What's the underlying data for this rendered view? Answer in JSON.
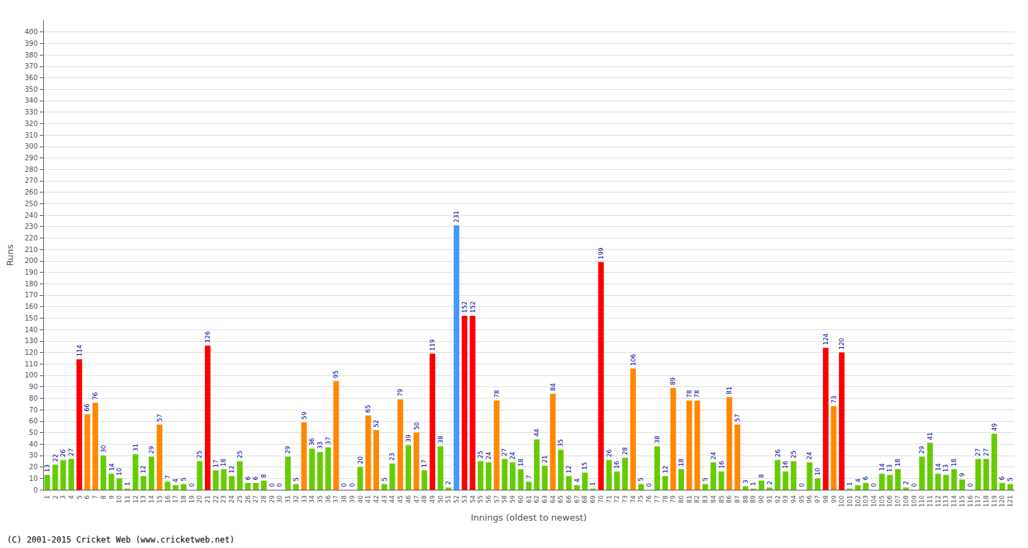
{
  "chart_data": {
    "type": "bar",
    "xlabel": "Innings (oldest to newest)",
    "ylabel": "Runs",
    "annotations": [
      "(C) 2001-2015 Cricket Web (www.cricketweb.net)"
    ],
    "categories": [
      "1",
      "2",
      "3",
      "4",
      "5",
      "6",
      "7",
      "8",
      "9",
      "10",
      "11",
      "12",
      "13",
      "14",
      "15",
      "16",
      "17",
      "18",
      "19",
      "20",
      "21",
      "22",
      "23",
      "24",
      "25",
      "26",
      "27",
      "28",
      "29",
      "30",
      "31",
      "32",
      "33",
      "34",
      "35",
      "36",
      "37",
      "38",
      "39",
      "40",
      "41",
      "42",
      "43",
      "44",
      "45",
      "46",
      "47",
      "48",
      "49",
      "50",
      "51",
      "52",
      "53",
      "54",
      "55",
      "56",
      "57",
      "58",
      "59",
      "60",
      "61",
      "62",
      "63",
      "64",
      "65",
      "66",
      "67",
      "68",
      "69",
      "70",
      "71",
      "72",
      "73",
      "74",
      "75",
      "76",
      "77",
      "78",
      "79",
      "80",
      "81",
      "82",
      "83",
      "84",
      "85",
      "86",
      "87",
      "88",
      "89",
      "90",
      "91",
      "92",
      "93",
      "94",
      "95",
      "96",
      "97",
      "98",
      "99",
      "100",
      "101",
      "102",
      "103",
      "104",
      "105",
      "106",
      "107",
      "108",
      "109",
      "110",
      "111",
      "112",
      "113",
      "114",
      "115",
      "116",
      "117",
      "118",
      "119",
      "120",
      "121"
    ],
    "values": [
      13,
      22,
      26,
      27,
      114,
      66,
      76,
      30,
      14,
      10,
      1,
      31,
      12,
      29,
      57,
      7,
      4,
      5,
      0,
      25,
      126,
      17,
      18,
      12,
      25,
      6,
      6,
      8,
      0,
      0,
      29,
      5,
      59,
      36,
      33,
      37,
      95,
      0,
      0,
      20,
      65,
      52,
      5,
      23,
      79,
      39,
      50,
      17,
      119,
      38,
      2,
      231,
      152,
      152,
      25,
      24,
      78,
      27,
      24,
      18,
      7,
      44,
      21,
      84,
      35,
      12,
      4,
      15,
      1,
      199,
      26,
      16,
      28,
      106,
      5,
      0,
      38,
      12,
      89,
      18,
      78,
      78,
      5,
      24,
      16,
      81,
      57,
      3,
      1,
      8,
      2,
      26,
      16,
      25,
      0,
      24,
      10,
      124,
      73,
      120,
      1,
      4,
      6,
      0,
      14,
      13,
      18,
      2,
      0,
      29,
      41,
      14,
      13,
      18,
      9,
      0,
      27,
      27,
      49,
      6,
      5
    ],
    "colors": [
      "#66cc00",
      "#66cc00",
      "#66cc00",
      "#66cc00",
      "#ff0000",
      "#ff8800",
      "#ff8800",
      "#66cc00",
      "#66cc00",
      "#66cc00",
      "#66cc00",
      "#66cc00",
      "#66cc00",
      "#66cc00",
      "#ff8800",
      "#66cc00",
      "#66cc00",
      "#66cc00",
      "#66cc00",
      "#66cc00",
      "#ff0000",
      "#66cc00",
      "#66cc00",
      "#66cc00",
      "#66cc00",
      "#66cc00",
      "#66cc00",
      "#66cc00",
      "#66cc00",
      "#66cc00",
      "#66cc00",
      "#66cc00",
      "#ff8800",
      "#66cc00",
      "#66cc00",
      "#66cc00",
      "#ff8800",
      "#66cc00",
      "#66cc00",
      "#66cc00",
      "#ff8800",
      "#ff8800",
      "#66cc00",
      "#66cc00",
      "#ff8800",
      "#66cc00",
      "#ff8800",
      "#66cc00",
      "#ff0000",
      "#66cc00",
      "#66cc00",
      "#4499ff",
      "#ff0000",
      "#ff0000",
      "#66cc00",
      "#66cc00",
      "#ff8800",
      "#66cc00",
      "#66cc00",
      "#66cc00",
      "#66cc00",
      "#66cc00",
      "#66cc00",
      "#ff8800",
      "#66cc00",
      "#66cc00",
      "#66cc00",
      "#66cc00",
      "#66cc00",
      "#ff0000",
      "#66cc00",
      "#66cc00",
      "#66cc00",
      "#ff8800",
      "#66cc00",
      "#66cc00",
      "#66cc00",
      "#66cc00",
      "#ff8800",
      "#66cc00",
      "#ff8800",
      "#ff8800",
      "#66cc00",
      "#66cc00",
      "#66cc00",
      "#ff8800",
      "#ff8800",
      "#66cc00",
      "#66cc00",
      "#66cc00",
      "#66cc00",
      "#66cc00",
      "#66cc00",
      "#66cc00",
      "#66cc00",
      "#66cc00",
      "#66cc00",
      "#ff0000",
      "#ff8800",
      "#ff0000",
      "#66cc00",
      "#66cc00",
      "#66cc00",
      "#66cc00",
      "#66cc00",
      "#66cc00",
      "#66cc00",
      "#66cc00",
      "#66cc00",
      "#66cc00",
      "#66cc00",
      "#66cc00",
      "#66cc00",
      "#66cc00",
      "#66cc00",
      "#66cc00",
      "#66cc00",
      "#66cc00",
      "#66cc00",
      "#66cc00",
      "#66cc00"
    ],
    "ylim": [
      0,
      410
    ],
    "yticks": [
      0,
      10,
      20,
      30,
      40,
      50,
      60,
      70,
      80,
      90,
      100,
      110,
      120,
      130,
      140,
      150,
      160,
      170,
      180,
      190,
      200,
      210,
      220,
      230,
      240,
      250,
      260,
      270,
      280,
      290,
      300,
      310,
      320,
      330,
      340,
      350,
      360,
      370,
      380,
      390,
      400
    ],
    "grid": true,
    "data_labels": true
  }
}
